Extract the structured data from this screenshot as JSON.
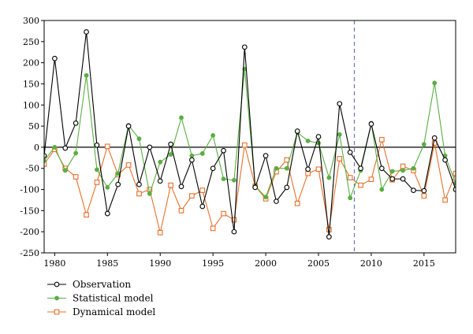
{
  "chart_data": {
    "type": "line",
    "title": "",
    "xlabel": "",
    "ylabel": "",
    "xlim": [
      1979,
      2018
    ],
    "ylim": [
      -250,
      300
    ],
    "x_ticks": [
      1980,
      1985,
      1990,
      1995,
      2000,
      2005,
      2010,
      2015
    ],
    "y_ticks": [
      300,
      250,
      200,
      150,
      100,
      50,
      0,
      -50,
      -100,
      -150,
      -200,
      -250
    ],
    "zero_line": 0,
    "vertical_marker_x": 2008.4,
    "grid": false,
    "legend_position": "bottom-left",
    "x": [
      1979,
      1980,
      1981,
      1982,
      1983,
      1984,
      1985,
      1986,
      1987,
      1988,
      1989,
      1990,
      1991,
      1992,
      1993,
      1994,
      1995,
      1996,
      1997,
      1998,
      1999,
      2000,
      2001,
      2002,
      2003,
      2004,
      2005,
      2006,
      2007,
      2008,
      2009,
      2010,
      2011,
      2012,
      2013,
      2014,
      2015,
      2016,
      2017,
      2018
    ],
    "series": [
      {
        "name": "Observation",
        "color": "#000000",
        "marker": "open-circle",
        "values": [
          -20,
          210,
          -2,
          57,
          273,
          5,
          -157,
          -88,
          50,
          -88,
          0,
          -80,
          7,
          -93,
          -30,
          -140,
          -50,
          -8,
          -200,
          237,
          -95,
          -20,
          -128,
          -95,
          38,
          -52,
          25,
          -212,
          103,
          -12,
          -50,
          55,
          -50,
          -75,
          -75,
          -102,
          -103,
          22,
          -30,
          -100
        ]
      },
      {
        "name": "Statistical model",
        "color": "#5aae43",
        "marker": "filled-circle",
        "values": [
          -32,
          0,
          -55,
          -14,
          170,
          -53,
          -95,
          -62,
          52,
          20,
          -110,
          -35,
          -17,
          70,
          -20,
          -15,
          28,
          -75,
          -78,
          185,
          -92,
          -118,
          -50,
          -50,
          35,
          15,
          10,
          -72,
          30,
          -120,
          -55,
          57,
          -100,
          -57,
          -55,
          -50,
          7,
          152,
          -20,
          -85
        ]
      },
      {
        "name": "Dynamical model",
        "color": "#e8702a",
        "marker": "open-square",
        "values": [
          -40,
          -5,
          -50,
          -70,
          -160,
          -83,
          2,
          -65,
          -42,
          -110,
          -100,
          -202,
          -90,
          -150,
          -115,
          -102,
          -192,
          -157,
          -172,
          5,
          -92,
          -122,
          -58,
          -30,
          -133,
          -62,
          -52,
          -195,
          -27,
          -72,
          -90,
          -76,
          18,
          -77,
          -45,
          -55,
          -115,
          10,
          -125,
          -62
        ]
      }
    ]
  }
}
